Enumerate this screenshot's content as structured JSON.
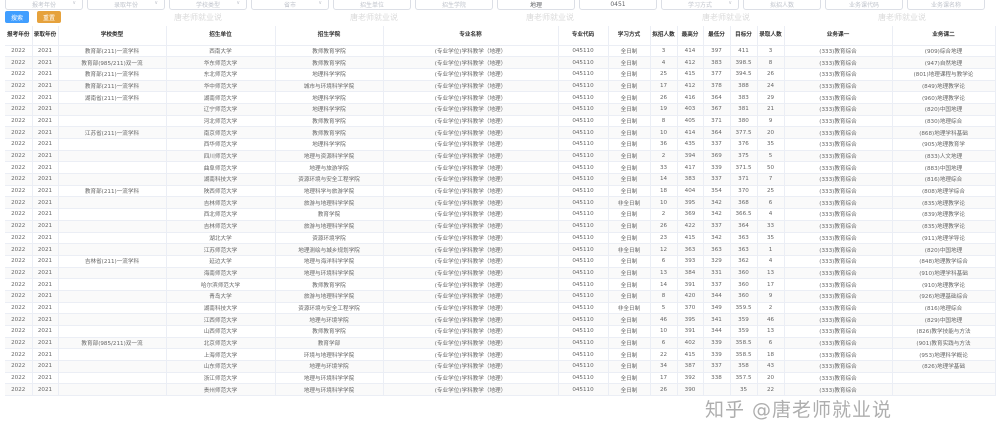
{
  "filters": [
    {
      "label": "报考年份",
      "dropdown": true,
      "filled": false
    },
    {
      "label": "录取年份",
      "dropdown": true,
      "filled": false
    },
    {
      "label": "学校类型",
      "dropdown": true,
      "filled": false
    },
    {
      "label": "省市",
      "dropdown": true,
      "filled": false
    },
    {
      "label": "招生单位",
      "dropdown": false,
      "filled": false
    },
    {
      "label": "招生学院",
      "dropdown": false,
      "filled": false
    },
    {
      "label": "地理",
      "dropdown": false,
      "filled": true
    },
    {
      "label": "0451",
      "dropdown": false,
      "filled": true
    },
    {
      "label": "学习方式",
      "dropdown": true,
      "filled": false
    },
    {
      "label": "拟招人数",
      "dropdown": false,
      "filled": false
    },
    {
      "label": "业务课代码",
      "dropdown": false,
      "filled": false
    },
    {
      "label": "业务课名称",
      "dropdown": false,
      "filled": false
    }
  ],
  "buttons": {
    "search": "搜索",
    "reset": "重置"
  },
  "columns": [
    "报考年份",
    "录取年份",
    "学校类型",
    "招生单位",
    "招生学院",
    "专业名称",
    "专业代码",
    "学习方式",
    "拟招人数",
    "最高分",
    "最低分",
    "目标分",
    "录取人数",
    "业务课一",
    "业务课二"
  ],
  "rows": [
    [
      "2022",
      "2021",
      "教育部(211)一流学科",
      "西南大学",
      "教师教育学院",
      "(专业学位)学科教学（地理）",
      "045110",
      "全日制",
      "3",
      "414",
      "397",
      "411",
      "3",
      "(333)教育综合",
      "(909)综合地理"
    ],
    [
      "2022",
      "2021",
      "教育部(985/211)双一流",
      "华东师范大学",
      "教师教育学院",
      "(专业学位)学科教学（地理）",
      "045110",
      "全日制",
      "4",
      "412",
      "383",
      "398.5",
      "8",
      "(333)教育综合",
      "(947)自然地理"
    ],
    [
      "2022",
      "2021",
      "教育部(211)一流学科",
      "东北师范大学",
      "地理科学学院",
      "(专业学位)学科教学（地理）",
      "045110",
      "全日制",
      "25",
      "415",
      "377",
      "394.5",
      "26",
      "(333)教育综合",
      "(801)地理课程与教学论"
    ],
    [
      "2022",
      "2021",
      "教育部(211)一流学科",
      "华中师范大学",
      "城市与环境科学学院",
      "(专业学位)学科教学（地理）",
      "045110",
      "全日制",
      "17",
      "412",
      "378",
      "388",
      "24",
      "(333)教育综合",
      "(849)地理教学论"
    ],
    [
      "2022",
      "2021",
      "湖南省(211)一流学科",
      "湖南师范大学",
      "地理科学学院",
      "(专业学位)学科教学（地理）",
      "045110",
      "全日制",
      "26",
      "416",
      "364",
      "383",
      "29",
      "(333)教育综合",
      "(960)地理教学论"
    ],
    [
      "2022",
      "2021",
      "",
      "辽宁师范大学",
      "地理科学学院",
      "(专业学位)学科教学（地理）",
      "045110",
      "全日制",
      "19",
      "403",
      "367",
      "381",
      "21",
      "(333)教育综合",
      "(820)中国地理"
    ],
    [
      "2022",
      "2021",
      "",
      "河北师范大学",
      "教师教育学院",
      "(专业学位)学科教学（地理）",
      "045110",
      "全日制",
      "8",
      "405",
      "371",
      "380",
      "9",
      "(333)教育综合",
      "(830)地理综合"
    ],
    [
      "2022",
      "2021",
      "江苏省(211)一流学科",
      "南京师范大学",
      "教师教育学院",
      "(专业学位)学科教学（地理）",
      "045110",
      "全日制",
      "10",
      "414",
      "364",
      "377.5",
      "20",
      "(333)教育综合",
      "(868)地理学科基础"
    ],
    [
      "2022",
      "2021",
      "",
      "西华师范大学",
      "地理科学学院",
      "(专业学位)学科教学（地理）",
      "045110",
      "全日制",
      "36",
      "435",
      "337",
      "376",
      "35",
      "(333)教育综合",
      "(905)地理教育学"
    ],
    [
      "2022",
      "2021",
      "",
      "四川师范大学",
      "地理与资源科学学院",
      "(专业学位)学科教学（地理）",
      "045110",
      "全日制",
      "2",
      "394",
      "369",
      "375",
      "5",
      "(333)教育综合",
      "(833)人文地理"
    ],
    [
      "2022",
      "2021",
      "",
      "曲阜师范大学",
      "地理与旅游学院",
      "(专业学位)学科教学（地理）",
      "045110",
      "全日制",
      "33",
      "417",
      "339",
      "371.5",
      "50",
      "(333)教育综合",
      "(883)中国地理"
    ],
    [
      "2022",
      "2021",
      "",
      "湖南科技大学",
      "资源环境与安全工程学院",
      "(专业学位)学科教学（地理）",
      "045110",
      "全日制",
      "14",
      "383",
      "337",
      "371",
      "7",
      "(333)教育综合",
      "(816)地理综合"
    ],
    [
      "2022",
      "2021",
      "教育部(211)一流学科",
      "陕西师范大学",
      "地理科学与旅游学院",
      "(专业学位)学科教学（地理）",
      "045110",
      "全日制",
      "18",
      "404",
      "354",
      "370",
      "25",
      "(333)教育综合",
      "(808)地理学综合"
    ],
    [
      "2022",
      "2021",
      "",
      "吉林师范大学",
      "旅游与地理科学学院",
      "(专业学位)学科教学（地理）",
      "045110",
      "非全日制",
      "10",
      "395",
      "342",
      "368",
      "6",
      "(333)教育综合",
      "(835)地理教学论"
    ],
    [
      "2022",
      "2021",
      "",
      "西北师范大学",
      "教育学院",
      "(专业学位)学科教学（地理）",
      "045110",
      "全日制",
      "2",
      "369",
      "342",
      "366.5",
      "4",
      "(333)教育综合",
      "(839)地理教学论"
    ],
    [
      "2022",
      "2021",
      "",
      "吉林师范大学",
      "旅游与地理科学学院",
      "(专业学位)学科教学（地理）",
      "045110",
      "全日制",
      "26",
      "422",
      "337",
      "364",
      "33",
      "(333)教育综合",
      "(835)地理教学论"
    ],
    [
      "2022",
      "2021",
      "",
      "湖北大学",
      "资源环境学院",
      "(专业学位)学科教学（地理）",
      "045110",
      "全日制",
      "23",
      "415",
      "342",
      "363",
      "35",
      "(333)教育综合",
      "(911)地理学导论"
    ],
    [
      "2022",
      "2021",
      "",
      "江苏师范大学",
      "地理测绘与城乡规划学院",
      "(专业学位)学科教学（地理）",
      "045110",
      "非全日制",
      "12",
      "363",
      "363",
      "363",
      "1",
      "(333)教育综合",
      "(820)中国地理"
    ],
    [
      "2022",
      "2021",
      "吉林省(211)一流学科",
      "延边大学",
      "地理与海洋科学学院",
      "(专业学位)学科教学（地理）",
      "045110",
      "全日制",
      "6",
      "393",
      "329",
      "362",
      "4",
      "(333)教育综合",
      "(848)地理教学综合"
    ],
    [
      "2022",
      "2021",
      "",
      "海南师范大学",
      "地理与环境科学学院",
      "(专业学位)学科教学（地理）",
      "045110",
      "全日制",
      "13",
      "384",
      "331",
      "360",
      "13",
      "(333)教育综合",
      "(910)地理学科基础"
    ],
    [
      "2022",
      "2021",
      "",
      "哈尔滨师范大学",
      "教师教育学院",
      "(专业学位)学科教学（地理）",
      "045110",
      "全日制",
      "14",
      "391",
      "337",
      "360",
      "17",
      "(333)教育综合",
      "(910)地理教学论"
    ],
    [
      "2022",
      "2021",
      "",
      "青岛大学",
      "旅游与地理科学学院",
      "(专业学位)学科教学（地理）",
      "045110",
      "全日制",
      "8",
      "420",
      "344",
      "360",
      "9",
      "(333)教育综合",
      "(926)地理基础综合"
    ],
    [
      "2022",
      "2021",
      "",
      "湖南科技大学",
      "资源环境与安全工程学院",
      "(专业学位)学科教学（地理）",
      "045110",
      "非全日制",
      "5",
      "370",
      "349",
      "359.5",
      "2",
      "(333)教育综合",
      "(816)地理综合"
    ],
    [
      "2022",
      "2021",
      "",
      "江西师范大学",
      "地理与环境学院",
      "(专业学位)学科教学（地理）",
      "045110",
      "全日制",
      "46",
      "395",
      "341",
      "359",
      "46",
      "(333)教育综合",
      "(829)中国地理"
    ],
    [
      "2022",
      "2021",
      "",
      "山西师范大学",
      "教师教育学院",
      "(专业学位)学科教学（地理）",
      "045110",
      "全日制",
      "10",
      "391",
      "344",
      "359",
      "13",
      "(333)教育综合",
      "(826)教学技能与方法"
    ],
    [
      "2022",
      "2021",
      "教育部(985/211)双一流",
      "北京师范大学",
      "教育学部",
      "(专业学位)学科教学（地理）",
      "045110",
      "全日制",
      "6",
      "402",
      "339",
      "358.5",
      "6",
      "(333)教育综合",
      "(901)教育实践与方法"
    ],
    [
      "2022",
      "2021",
      "",
      "上海师范大学",
      "环境与地理科学学院",
      "(专业学位)学科教学（地理）",
      "045110",
      "全日制",
      "22",
      "415",
      "339",
      "358.5",
      "18",
      "(333)教育综合",
      "(953)地理科学概论"
    ],
    [
      "2022",
      "2021",
      "",
      "山东师范大学",
      "地理与环境学院",
      "(专业学位)学科教学（地理）",
      "045110",
      "全日制",
      "34",
      "387",
      "337",
      "358",
      "43",
      "(333)教育综合",
      "(826)地理学基础"
    ],
    [
      "2022",
      "2021",
      "",
      "浙江师范大学",
      "地理与环境科学学院",
      "(专业学位)学科教学（地理）",
      "045110",
      "全日制",
      "17",
      "392",
      "338",
      "357.5",
      "20",
      "(333)教育综合",
      ""
    ],
    [
      "2022",
      "2021",
      "",
      "贵州师范大学",
      "地理与环境科学学院",
      "(专业学位)学科教学（地理）",
      "045110",
      "全日制",
      "26",
      "390",
      "",
      "35",
      "22",
      "(333)教育综合",
      ""
    ]
  ],
  "watermark": "唐老师就业说",
  "zhihu_watermark": "知乎 @唐老师就业说",
  "colors": {
    "primary": "#409eff",
    "warning": "#e6a23c"
  }
}
